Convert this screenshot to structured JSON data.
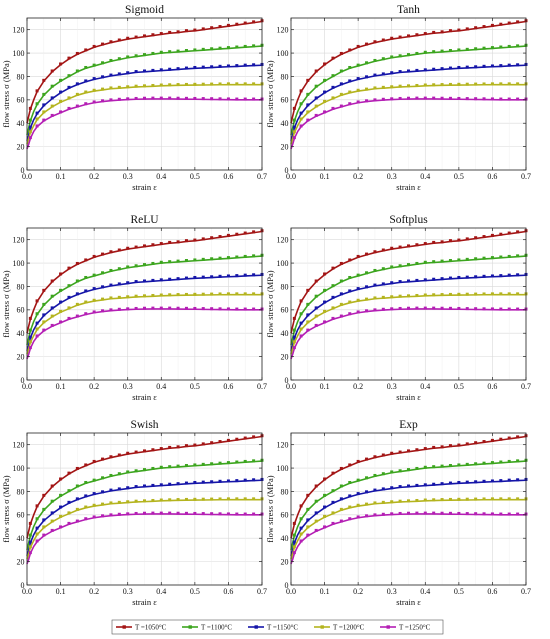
{
  "chart_data": {
    "type": "line",
    "x": [
      0,
      0.005,
      0.01,
      0.02,
      0.03,
      0.05,
      0.075,
      0.1,
      0.125,
      0.15,
      0.175,
      0.2,
      0.225,
      0.25,
      0.275,
      0.3,
      0.325,
      0.35,
      0.375,
      0.4,
      0.425,
      0.45,
      0.475,
      0.5,
      0.525,
      0.55,
      0.575,
      0.6,
      0.625,
      0.65,
      0.675,
      0.7
    ],
    "xlabel": "strain ε",
    "ylabel": "flow stress σ (MPa)",
    "xlim": [
      0,
      0.7
    ],
    "ylim": [
      0,
      130
    ],
    "xticks": [
      "0.0",
      "0.1",
      "0.2",
      "0.3",
      "0.4",
      "0.5",
      "0.6",
      "0.7"
    ],
    "yticks": [
      "0",
      "20",
      "40",
      "60",
      "80",
      "100",
      "120"
    ],
    "grid": true,
    "legend_position": "bottom-center",
    "legend": [
      {
        "label": "T =1050°C",
        "color": "#a31515"
      },
      {
        "label": "T =1100°C",
        "color": "#3ca51e"
      },
      {
        "label": "T =1150°C",
        "color": "#1515a8"
      },
      {
        "label": "T =1200°C",
        "color": "#b4b41e"
      },
      {
        "label": "T =1250°C",
        "color": "#b41eb4"
      }
    ],
    "series": [
      {
        "name": "T =1050°C",
        "color": "#a31515",
        "values": [
          40,
          46,
          52,
          60,
          67,
          76,
          84,
          90,
          95,
          99,
          102,
          105,
          107,
          109,
          110.5,
          112,
          113,
          114,
          115,
          116,
          117,
          117.5,
          118.5,
          119,
          120,
          121,
          122,
          123,
          124,
          125,
          126,
          127
        ]
      },
      {
        "name": "T =1100°C",
        "color": "#3ca51e",
        "values": [
          30,
          36,
          42,
          50,
          56,
          64,
          71,
          76,
          80,
          84,
          87,
          89,
          91,
          93,
          94.5,
          96,
          97,
          98,
          99,
          100,
          100.5,
          101,
          101.5,
          102,
          102.5,
          103,
          103.5,
          104,
          104.5,
          105,
          105.5,
          106
        ]
      },
      {
        "name": "T =1150°C",
        "color": "#1515a8",
        "values": [
          25,
          30,
          36,
          43,
          48,
          55,
          61,
          66,
          70,
          73,
          75.5,
          77.5,
          79,
          80.5,
          81.5,
          82.5,
          83.5,
          84,
          84.5,
          85,
          85.5,
          86,
          86.5,
          87,
          87.3,
          87.6,
          88,
          88.3,
          88.6,
          89,
          89.3,
          89.6
        ]
      },
      {
        "name": "T =1200°C",
        "color": "#b4b41e",
        "values": [
          22,
          27,
          32,
          38,
          43,
          49,
          54,
          58,
          61,
          64,
          66,
          67.5,
          68.5,
          69.5,
          70,
          70.5,
          71,
          71.3,
          71.6,
          72,
          72.2,
          72.4,
          72.5,
          72.6,
          72.7,
          72.8,
          72.9,
          73,
          73,
          73,
          73,
          73
        ]
      },
      {
        "name": "T =1250°C",
        "color": "#b41eb4",
        "values": [
          18,
          22,
          27,
          33,
          37,
          42,
          46,
          49,
          52,
          54,
          56,
          57.5,
          58.5,
          59.3,
          59.8,
          60.2,
          60.5,
          60.7,
          60.8,
          60.8,
          60.8,
          60.7,
          60.6,
          60.5,
          60.4,
          60.3,
          60.2,
          60.1,
          60,
          60,
          60,
          60
        ]
      }
    ],
    "panels": [
      {
        "title": "Sigmoid",
        "xlabel": "strain ε",
        "ylabel": "flow stress σ (MPa)"
      },
      {
        "title": "Tanh",
        "xlabel": "strain ε",
        "ylabel": "flow stress σ (MPa)"
      },
      {
        "title": "ReLU",
        "xlabel": "strain ε",
        "ylabel": "flow stress σ (MPa)"
      },
      {
        "title": "Softplus",
        "xlabel": "strain ε",
        "ylabel": "flow stress σ (MPa)"
      },
      {
        "title": "Swish",
        "xlabel": "strain ε",
        "ylabel": "flow stress σ (MPa)"
      },
      {
        "title": "Exp",
        "xlabel": "strain ε",
        "ylabel": "flow stress σ (MPa)"
      }
    ]
  }
}
